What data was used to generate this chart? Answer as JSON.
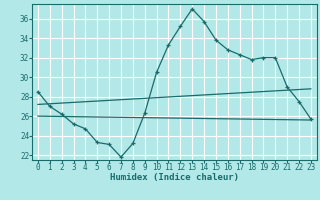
{
  "title": "",
  "xlabel": "Humidex (Indice chaleur)",
  "ylabel": "",
  "background_color": "#b3e8e8",
  "grid_color": "#ffffff",
  "line_color": "#1a6b6b",
  "xlim": [
    -0.5,
    23.5
  ],
  "ylim": [
    21.5,
    37.5
  ],
  "xticks": [
    0,
    1,
    2,
    3,
    4,
    5,
    6,
    7,
    8,
    9,
    10,
    11,
    12,
    13,
    14,
    15,
    16,
    17,
    18,
    19,
    20,
    21,
    22,
    23
  ],
  "yticks": [
    22,
    24,
    26,
    28,
    30,
    32,
    34,
    36
  ],
  "line1_x": [
    0,
    1,
    2,
    3,
    4,
    5,
    6,
    7,
    8,
    9,
    10,
    11,
    12,
    13,
    14,
    15,
    16,
    17,
    18,
    19,
    20,
    21,
    22,
    23
  ],
  "line1_y": [
    28.5,
    27.0,
    26.2,
    25.2,
    24.7,
    23.3,
    23.1,
    21.8,
    23.2,
    26.3,
    30.5,
    33.3,
    35.2,
    37.0,
    35.7,
    33.8,
    32.8,
    32.3,
    31.8,
    32.0,
    32.0,
    29.0,
    27.5,
    25.7
  ],
  "line2_x": [
    0,
    23
  ],
  "line2_y": [
    27.2,
    28.8
  ],
  "line3_x": [
    0,
    23
  ],
  "line3_y": [
    26.0,
    25.6
  ],
  "tick_fontsize": 5.5,
  "label_fontsize": 6.5
}
